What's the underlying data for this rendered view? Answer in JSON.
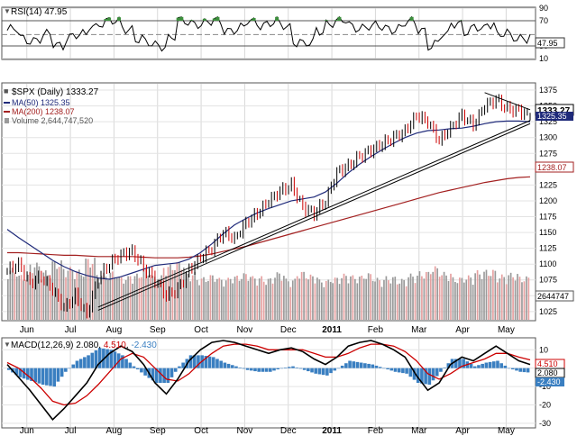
{
  "chart_data": {
    "type": "line",
    "title": "$SPX (Daily) 1333.27",
    "symbol": "$SPX",
    "interval": "Daily",
    "last_price": "1333.27",
    "months": [
      "Jun",
      "Jul",
      "Aug",
      "Sep",
      "Oct",
      "Nov",
      "Dec",
      "2011",
      "Feb",
      "Mar",
      "Apr",
      "May"
    ],
    "colors": {
      "price_up": "#000000",
      "price_down": "#cc0000",
      "ma50": "#1f2a7a",
      "ma200": "#a32020",
      "volume_up": "#9a9a9a",
      "volume_down": "#e6a0a0",
      "rsi_fill": "#3d8f3d",
      "macd_line": "#000000",
      "signal_line": "#cc0000",
      "histogram": "#3a7fc1",
      "badge": "#333333"
    },
    "rsi": {
      "legend": "RSI(14) 47.95",
      "value": 47.95,
      "value_label": "47.95",
      "ylim": [
        10,
        90
      ],
      "ticks": [
        "90",
        "70",
        "30",
        "10"
      ],
      "overbought": 70,
      "oversold": 30
    },
    "price": {
      "ylim": [
        1012,
        1385
      ],
      "ticks": [
        "1375",
        "1350",
        "1325",
        "1300",
        "1275",
        "1250",
        "1225",
        "1200",
        "1175",
        "1150",
        "1125",
        "1100",
        "1075",
        "1050",
        "1025"
      ],
      "series": [
        {
          "name": "$SPX (Daily)",
          "label": "$SPX (Daily) 1333.27",
          "value_label": "1333.27",
          "values": [
            1090,
            1100,
            1070,
            1080,
            1060,
            1030,
            1050,
            1020,
            1078,
            1100,
            1115,
            1120,
            1095,
            1075,
            1050,
            1060,
            1090,
            1110,
            1125,
            1150,
            1140,
            1165,
            1180,
            1200,
            1215,
            1225,
            1190,
            1180,
            1200,
            1245,
            1255,
            1270,
            1280,
            1290,
            1300,
            1310,
            1335,
            1325,
            1295,
            1315,
            1335,
            1320,
            1350,
            1360,
            1345,
            1343,
            1333
          ]
        },
        {
          "name": "MA(50)",
          "label": "MA(50) 1325.35",
          "value_label": "1325.35",
          "values": [
            1155,
            1142,
            1130,
            1118,
            1106,
            1096,
            1088,
            1082,
            1078,
            1076,
            1080,
            1086,
            1092,
            1098,
            1100,
            1102,
            1108,
            1118,
            1132,
            1148,
            1162,
            1172,
            1181,
            1188,
            1194,
            1200,
            1203,
            1206,
            1214,
            1228,
            1244,
            1258,
            1270,
            1281,
            1291,
            1300,
            1307,
            1311,
            1312,
            1314,
            1315,
            1318,
            1322,
            1325,
            1326,
            1326,
            1325
          ]
        },
        {
          "name": "MA(200)",
          "label": "MA(200) 1238.07",
          "value_label": "1238.07",
          "values": [
            1118,
            1118,
            1117,
            1116,
            1115,
            1114,
            1114,
            1113,
            1112,
            1112,
            1112,
            1112,
            1111,
            1110,
            1110,
            1110,
            1111,
            1113,
            1116,
            1120,
            1124,
            1128,
            1133,
            1138,
            1143,
            1148,
            1153,
            1158,
            1163,
            1168,
            1173,
            1178,
            1183,
            1188,
            1193,
            1198,
            1203,
            1208,
            1213,
            1217,
            1221,
            1225,
            1229,
            1232,
            1235,
            1237,
            1238
          ]
        }
      ],
      "trendlines": [
        {
          "name": "support-channel-lower",
          "points": [
            [
              8,
              1027
            ],
            [
              46,
              1322
            ]
          ]
        },
        {
          "name": "support-channel-upper",
          "points": [
            [
              8,
              1032
            ],
            [
              46,
              1327
            ]
          ]
        },
        {
          "name": "resistance-line",
          "points": [
            [
              42,
              1371
            ],
            [
              46,
              1344
            ]
          ]
        }
      ]
    },
    "volume": {
      "legend": "Volume 2,644,747,520",
      "value_label": "2644747",
      "bars": [
        6.2,
        5.4,
        6.8,
        5.9,
        7.1,
        6.3,
        6.0,
        7.4,
        5.6,
        5.8,
        5.2,
        5.5,
        6.1,
        5.3,
        6.6,
        7.0,
        5.7,
        5.1,
        5.4,
        5.0,
        5.3,
        5.6,
        5.2,
        5.0,
        5.7,
        4.9,
        5.8,
        5.4,
        4.8,
        5.1,
        5.5,
        5.3,
        5.6,
        5.0,
        5.2,
        4.9,
        5.5,
        5.8,
        6.4,
        5.7,
        5.1,
        5.3,
        5.9,
        6.0,
        5.4,
        5.6,
        5.2
      ],
      "down_days": [
        1,
        5,
        7,
        12,
        14,
        15,
        22,
        26,
        27,
        37,
        38,
        43,
        44,
        46
      ]
    },
    "macd": {
      "legend_prefix": "MACD(12,26,9)",
      "macd_value": "2.080",
      "signal_value": "4.510",
      "hist_value": "-2.430",
      "ylim": [
        -32,
        16
      ],
      "ticks": [
        "10",
        "0",
        "-10",
        "-20",
        "-30"
      ],
      "macd_line": [
        2,
        -5,
        -12,
        -20,
        -28,
        -22,
        -15,
        -8,
        2,
        8,
        12,
        9,
        2,
        -8,
        -14,
        -6,
        4,
        10,
        14,
        15,
        14,
        12,
        10,
        8,
        10,
        11,
        9,
        5,
        2,
        6,
        12,
        14,
        15,
        13,
        10,
        6,
        -4,
        -12,
        -8,
        2,
        6,
        4,
        8,
        12,
        8,
        4,
        2
      ],
      "signal_line": [
        3,
        0,
        -5,
        -11,
        -18,
        -20,
        -19,
        -15,
        -9,
        -2,
        5,
        8,
        6,
        0,
        -6,
        -7,
        -3,
        3,
        8,
        12,
        13,
        13,
        12,
        10,
        10,
        10,
        10,
        8,
        6,
        6,
        8,
        11,
        13,
        13,
        12,
        9,
        4,
        -3,
        -6,
        -3,
        1,
        3,
        5,
        8,
        8,
        6,
        4.5
      ]
    }
  }
}
